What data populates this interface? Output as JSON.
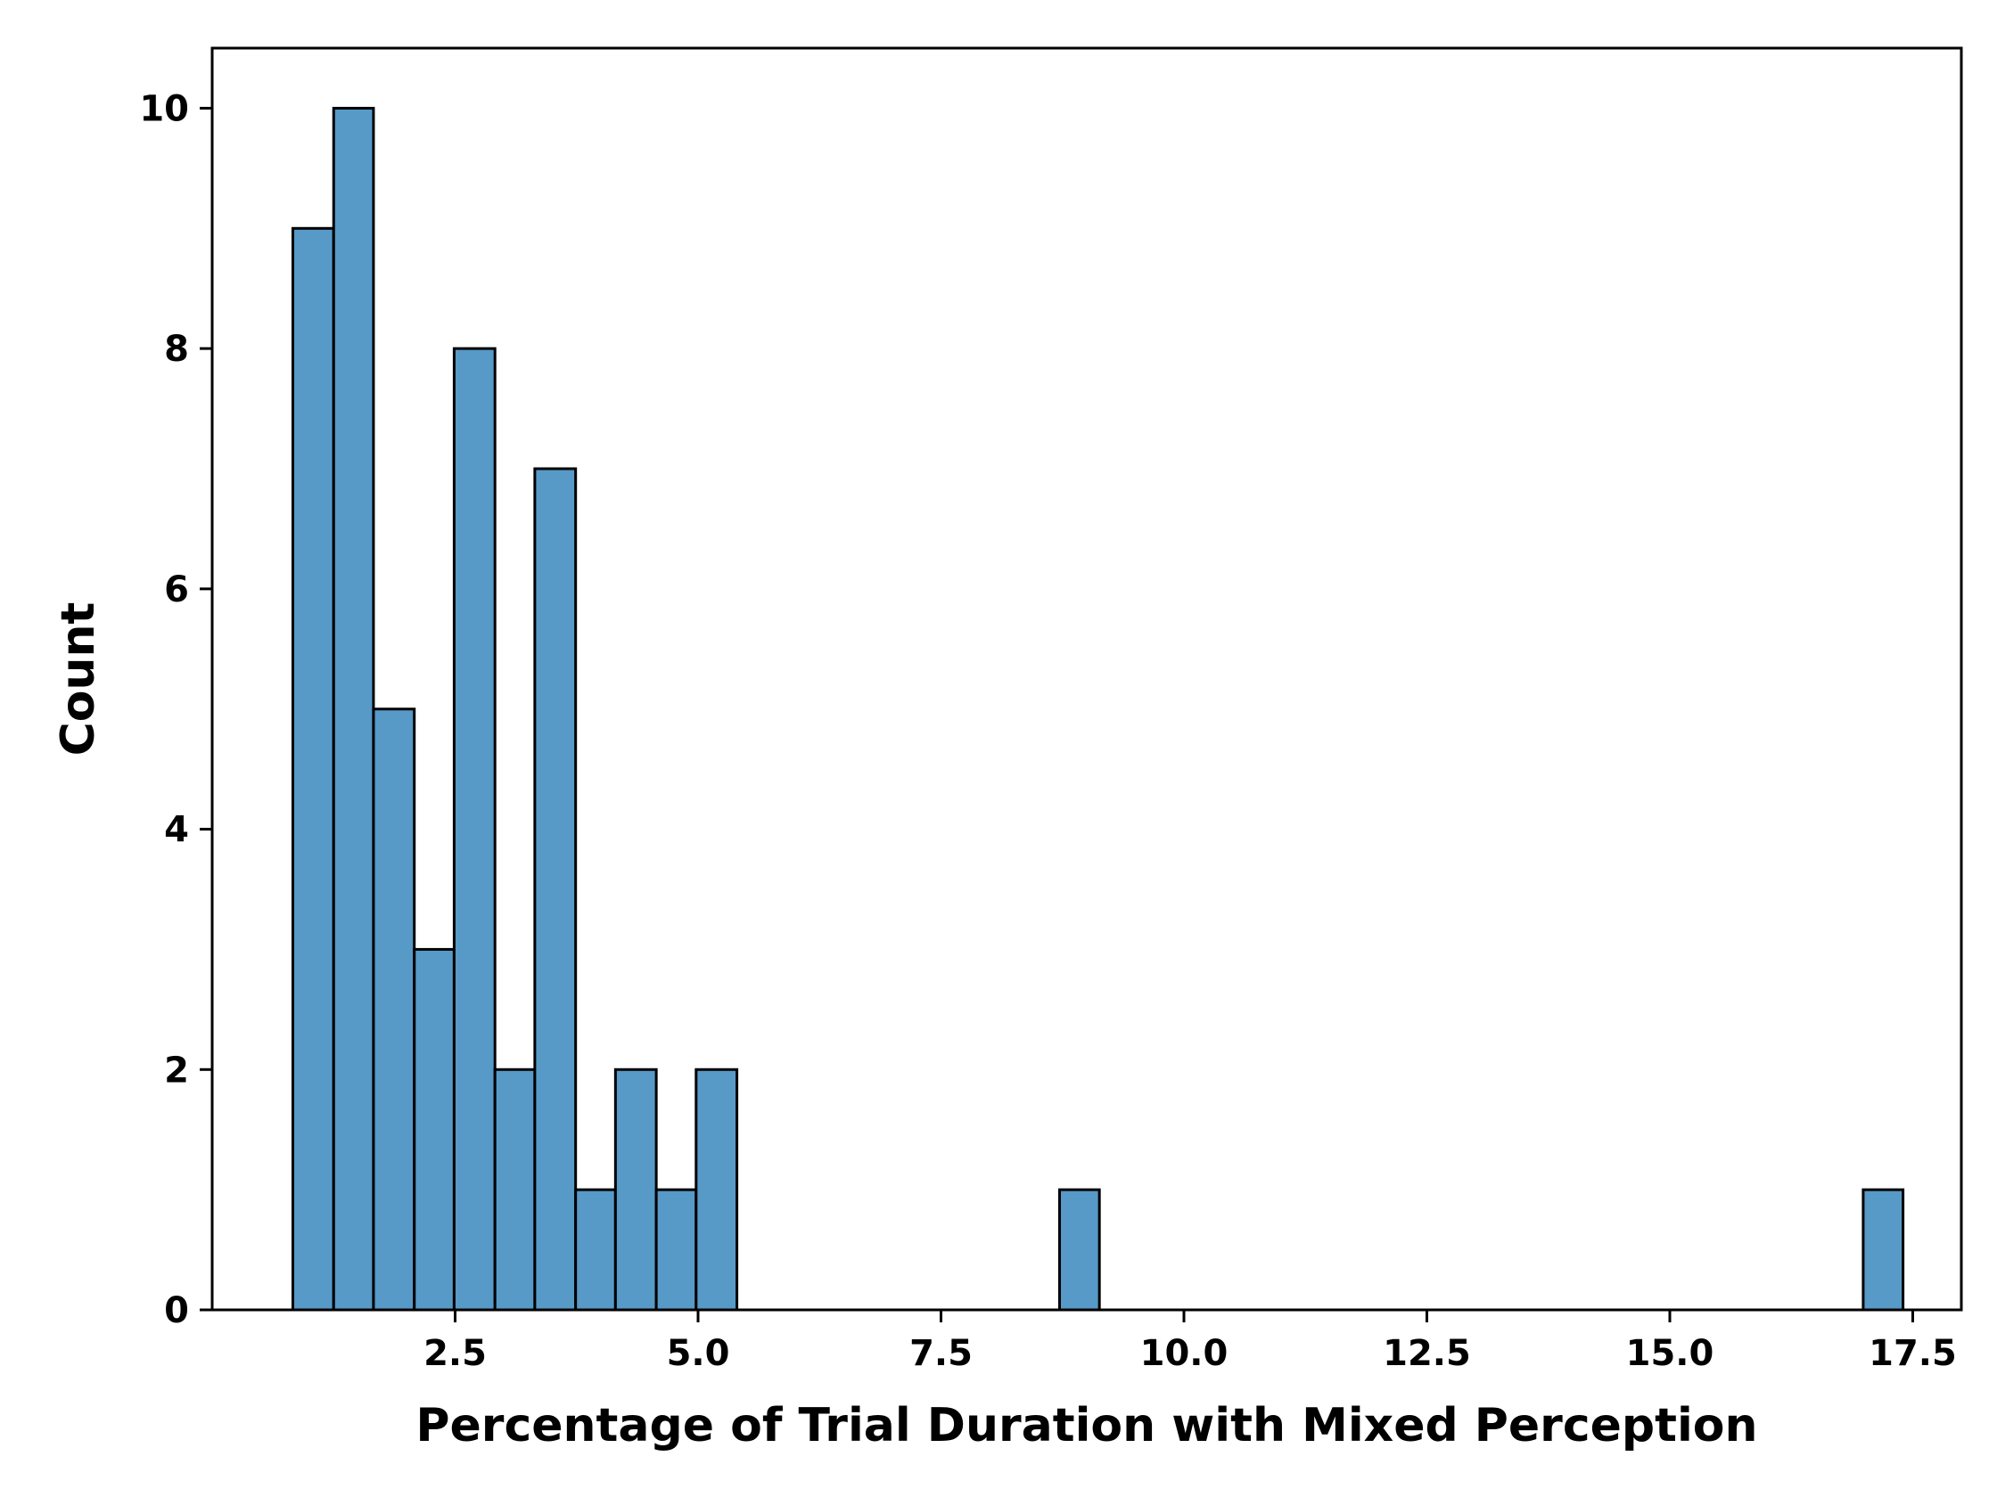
{
  "chart_data": {
    "type": "bar",
    "subtype": "histogram",
    "title": "",
    "xlabel": "Percentage of Trial Duration with Mixed Perception",
    "ylabel": "Count",
    "xlim": [
      0.0,
      18.0
    ],
    "ylim": [
      0,
      10.5
    ],
    "xticks": [
      2.5,
      5.0,
      7.5,
      10.0,
      12.5,
      15.0,
      17.5
    ],
    "xtick_labels": [
      "2.5",
      "5.0",
      "7.5",
      "10.0",
      "12.5",
      "15.0",
      "17.5"
    ],
    "yticks": [
      0,
      2,
      4,
      6,
      8,
      10
    ],
    "ytick_labels": [
      "0",
      "2",
      "4",
      "6",
      "8",
      "10"
    ],
    "grid": false,
    "legend": false,
    "bar_color": "#5799c7",
    "edge_color": "#000000",
    "bins": [
      {
        "x0": 0.83,
        "x1": 1.25,
        "count": 9
      },
      {
        "x0": 1.25,
        "x1": 1.66,
        "count": 10
      },
      {
        "x0": 1.66,
        "x1": 2.08,
        "count": 5
      },
      {
        "x0": 2.08,
        "x1": 2.49,
        "count": 3
      },
      {
        "x0": 2.49,
        "x1": 2.91,
        "count": 8
      },
      {
        "x0": 2.91,
        "x1": 3.32,
        "count": 2
      },
      {
        "x0": 3.32,
        "x1": 3.74,
        "count": 7
      },
      {
        "x0": 3.74,
        "x1": 4.15,
        "count": 1
      },
      {
        "x0": 4.15,
        "x1": 4.57,
        "count": 2
      },
      {
        "x0": 4.57,
        "x1": 4.98,
        "count": 1
      },
      {
        "x0": 4.98,
        "x1": 5.4,
        "count": 2
      },
      {
        "x0": 8.72,
        "x1": 9.13,
        "count": 1
      },
      {
        "x0": 16.99,
        "x1": 17.4,
        "count": 1
      }
    ]
  }
}
